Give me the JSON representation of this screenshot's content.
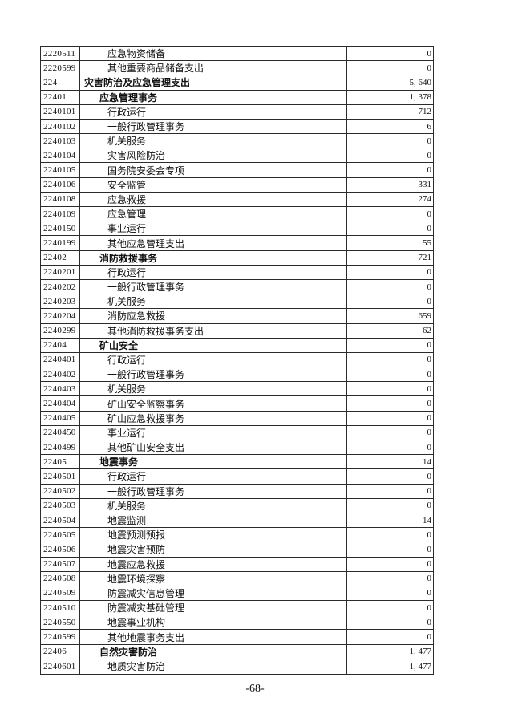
{
  "page": {
    "number_label": "-68-",
    "background_color": "#ffffff",
    "text_color": "#111111",
    "border_color": "#2b2b2b"
  },
  "table": {
    "columns": [
      "code",
      "name",
      "amount"
    ],
    "rows": [
      {
        "code": "2220511",
        "name": "应急物资储备",
        "value": "0",
        "level": 7,
        "bold": false
      },
      {
        "code": "2220599",
        "name": "其他重要商品储备支出",
        "value": "0",
        "level": 7,
        "bold": false
      },
      {
        "code": "224",
        "name": "灾害防治及应急管理支出",
        "value": "5, 640",
        "level": 3,
        "bold": true
      },
      {
        "code": "22401",
        "name": "应急管理事务",
        "value": "1, 378",
        "level": 5,
        "bold": true
      },
      {
        "code": "2240101",
        "name": "行政运行",
        "value": "712",
        "level": 7,
        "bold": false
      },
      {
        "code": "2240102",
        "name": "一般行政管理事务",
        "value": "6",
        "level": 7,
        "bold": false
      },
      {
        "code": "2240103",
        "name": "机关服务",
        "value": "0",
        "level": 7,
        "bold": false
      },
      {
        "code": "2240104",
        "name": "灾害风险防治",
        "value": "0",
        "level": 7,
        "bold": false
      },
      {
        "code": "2240105",
        "name": "国务院安委会专项",
        "value": "0",
        "level": 7,
        "bold": false
      },
      {
        "code": "2240106",
        "name": "安全监管",
        "value": "331",
        "level": 7,
        "bold": false
      },
      {
        "code": "2240108",
        "name": "应急救援",
        "value": "274",
        "level": 7,
        "bold": false
      },
      {
        "code": "2240109",
        "name": "应急管理",
        "value": "0",
        "level": 7,
        "bold": false
      },
      {
        "code": "2240150",
        "name": "事业运行",
        "value": "0",
        "level": 7,
        "bold": false
      },
      {
        "code": "2240199",
        "name": "其他应急管理支出",
        "value": "55",
        "level": 7,
        "bold": false
      },
      {
        "code": "22402",
        "name": "消防救援事务",
        "value": "721",
        "level": 5,
        "bold": true
      },
      {
        "code": "2240201",
        "name": "行政运行",
        "value": "0",
        "level": 7,
        "bold": false
      },
      {
        "code": "2240202",
        "name": "一般行政管理事务",
        "value": "0",
        "level": 7,
        "bold": false
      },
      {
        "code": "2240203",
        "name": "机关服务",
        "value": "0",
        "level": 7,
        "bold": false
      },
      {
        "code": "2240204",
        "name": "消防应急救援",
        "value": "659",
        "level": 7,
        "bold": false
      },
      {
        "code": "2240299",
        "name": "其他消防救援事务支出",
        "value": "62",
        "level": 7,
        "bold": false
      },
      {
        "code": "22404",
        "name": "矿山安全",
        "value": "0",
        "level": 5,
        "bold": true
      },
      {
        "code": "2240401",
        "name": "行政运行",
        "value": "0",
        "level": 7,
        "bold": false
      },
      {
        "code": "2240402",
        "name": "一般行政管理事务",
        "value": "0",
        "level": 7,
        "bold": false
      },
      {
        "code": "2240403",
        "name": "机关服务",
        "value": "0",
        "level": 7,
        "bold": false
      },
      {
        "code": "2240404",
        "name": "矿山安全监察事务",
        "value": "0",
        "level": 7,
        "bold": false
      },
      {
        "code": "2240405",
        "name": "矿山应急救援事务",
        "value": "0",
        "level": 7,
        "bold": false
      },
      {
        "code": "2240450",
        "name": "事业运行",
        "value": "0",
        "level": 7,
        "bold": false
      },
      {
        "code": "2240499",
        "name": "其他矿山安全支出",
        "value": "0",
        "level": 7,
        "bold": false
      },
      {
        "code": "22405",
        "name": "地震事务",
        "value": "14",
        "level": 5,
        "bold": true
      },
      {
        "code": "2240501",
        "name": "行政运行",
        "value": "0",
        "level": 7,
        "bold": false
      },
      {
        "code": "2240502",
        "name": "一般行政管理事务",
        "value": "0",
        "level": 7,
        "bold": false
      },
      {
        "code": "2240503",
        "name": "机关服务",
        "value": "0",
        "level": 7,
        "bold": false
      },
      {
        "code": "2240504",
        "name": "地震监测",
        "value": "14",
        "level": 7,
        "bold": false
      },
      {
        "code": "2240505",
        "name": "地震预测预报",
        "value": "0",
        "level": 7,
        "bold": false
      },
      {
        "code": "2240506",
        "name": "地震灾害预防",
        "value": "0",
        "level": 7,
        "bold": false
      },
      {
        "code": "2240507",
        "name": "地震应急救援",
        "value": "0",
        "level": 7,
        "bold": false
      },
      {
        "code": "2240508",
        "name": "地震环境探察",
        "value": "0",
        "level": 7,
        "bold": false
      },
      {
        "code": "2240509",
        "name": "防震减灾信息管理",
        "value": "0",
        "level": 7,
        "bold": false
      },
      {
        "code": "2240510",
        "name": "防震减灾基础管理",
        "value": "0",
        "level": 7,
        "bold": false
      },
      {
        "code": "2240550",
        "name": "地震事业机构",
        "value": "0",
        "level": 7,
        "bold": false
      },
      {
        "code": "2240599",
        "name": "其他地震事务支出",
        "value": "0",
        "level": 7,
        "bold": false
      },
      {
        "code": "22406",
        "name": "自然灾害防治",
        "value": "1, 477",
        "level": 5,
        "bold": true
      },
      {
        "code": "2240601",
        "name": "地质灾害防治",
        "value": "1, 477",
        "level": 7,
        "bold": false
      }
    ]
  }
}
